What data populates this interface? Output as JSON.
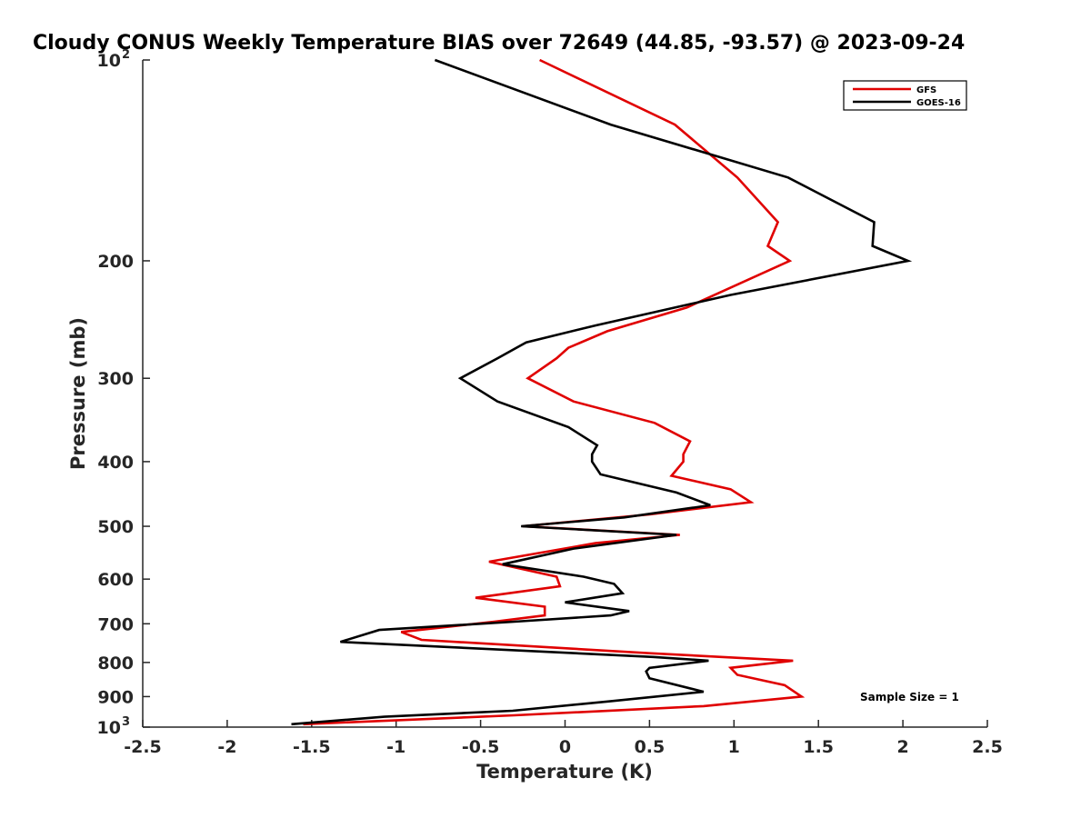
{
  "chart_data": {
    "type": "line",
    "title": "Cloudy CONUS Weekly Temperature BIAS over 72649 (44.85, -93.57) @ 2023-09-24",
    "xlabel": "Temperature (K)",
    "ylabel": "Pressure (mb)",
    "xlim": [
      -2.5,
      2.5
    ],
    "ylim": [
      100,
      1000
    ],
    "y_scale": "log",
    "y_reversed": true,
    "grid": false,
    "legend_position": "top-right",
    "x_ticks": [
      "-2.5",
      "-2",
      "-1.5",
      "-1",
      "-0.5",
      "0",
      "0.5",
      "1",
      "1.5",
      "2",
      "2.5"
    ],
    "y_ticks": [
      {
        "value": 100,
        "base": "10",
        "exp": "2"
      },
      {
        "value": 200,
        "label": "200"
      },
      {
        "value": 300,
        "label": "300"
      },
      {
        "value": 400,
        "label": "400"
      },
      {
        "value": 500,
        "label": "500"
      },
      {
        "value": 600,
        "label": "600"
      },
      {
        "value": 700,
        "label": "700"
      },
      {
        "value": 800,
        "label": "800"
      },
      {
        "value": 900,
        "label": "900"
      },
      {
        "value": 1000,
        "base": "10",
        "exp": "3"
      }
    ],
    "annotation": "Sample Size = 1",
    "series": [
      {
        "name": "GFS",
        "color": "#e00000",
        "points": [
          [
            -0.15,
            100
          ],
          [
            0.65,
            125
          ],
          [
            1.02,
            150
          ],
          [
            1.26,
            175
          ],
          [
            1.2,
            190
          ],
          [
            1.33,
            200
          ],
          [
            0.72,
            235
          ],
          [
            0.25,
            255
          ],
          [
            0.02,
            270
          ],
          [
            -0.05,
            280
          ],
          [
            -0.22,
            300
          ],
          [
            0.05,
            325
          ],
          [
            0.53,
            350
          ],
          [
            0.74,
            373
          ],
          [
            0.7,
            390
          ],
          [
            0.7,
            400
          ],
          [
            0.63,
            420
          ],
          [
            0.98,
            440
          ],
          [
            1.1,
            460
          ],
          [
            0.5,
            480
          ],
          [
            -0.25,
            500
          ],
          [
            0.68,
            515
          ],
          [
            0.18,
            530
          ],
          [
            -0.45,
            565
          ],
          [
            -0.05,
            595
          ],
          [
            -0.03,
            615
          ],
          [
            -0.53,
            640
          ],
          [
            -0.12,
            660
          ],
          [
            -0.12,
            680
          ],
          [
            -0.42,
            695
          ],
          [
            -0.97,
            720
          ],
          [
            -0.85,
            740
          ],
          [
            0.5,
            775
          ],
          [
            1.35,
            795
          ],
          [
            0.98,
            815
          ],
          [
            1.02,
            835
          ],
          [
            1.3,
            865
          ],
          [
            1.4,
            900
          ],
          [
            0.82,
            930
          ],
          [
            -0.3,
            960
          ],
          [
            -1.55,
            990
          ]
        ]
      },
      {
        "name": "GOES-16",
        "color": "#000000",
        "points": [
          [
            -0.77,
            100
          ],
          [
            0.27,
            125
          ],
          [
            1.32,
            150
          ],
          [
            1.83,
            175
          ],
          [
            1.82,
            190
          ],
          [
            2.03,
            200
          ],
          [
            0.98,
            225
          ],
          [
            0.18,
            250
          ],
          [
            -0.23,
            265
          ],
          [
            -0.4,
            280
          ],
          [
            -0.62,
            300
          ],
          [
            -0.4,
            325
          ],
          [
            0.02,
            355
          ],
          [
            0.19,
            378
          ],
          [
            0.16,
            390
          ],
          [
            0.16,
            400
          ],
          [
            0.21,
            418
          ],
          [
            0.66,
            445
          ],
          [
            0.86,
            465
          ],
          [
            0.35,
            485
          ],
          [
            -0.26,
            500
          ],
          [
            0.66,
            515
          ],
          [
            0.05,
            540
          ],
          [
            -0.37,
            570
          ],
          [
            0.11,
            595
          ],
          [
            0.29,
            610
          ],
          [
            0.34,
            630
          ],
          [
            0.0,
            650
          ],
          [
            0.38,
            670
          ],
          [
            0.27,
            680
          ],
          [
            -0.3,
            695
          ],
          [
            -1.1,
            715
          ],
          [
            -1.33,
            745
          ],
          [
            0.52,
            785
          ],
          [
            0.85,
            795
          ],
          [
            0.5,
            815
          ],
          [
            0.48,
            825
          ],
          [
            0.5,
            845
          ],
          [
            0.82,
            885
          ],
          [
            0.26,
            915
          ],
          [
            -0.31,
            945
          ],
          [
            -1.07,
            965
          ],
          [
            -1.62,
            990
          ]
        ]
      }
    ]
  }
}
